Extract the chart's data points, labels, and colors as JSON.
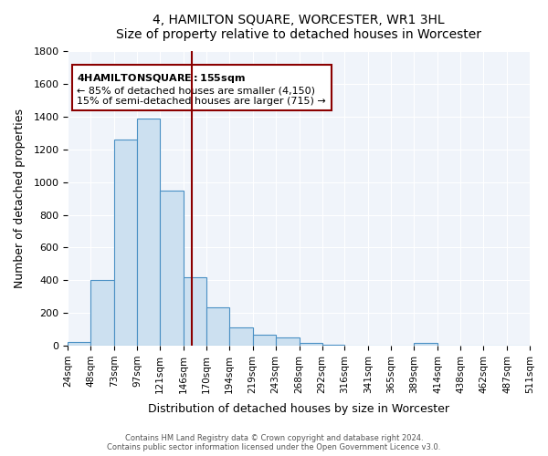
{
  "title": "4, HAMILTON SQUARE, WORCESTER, WR1 3HL",
  "subtitle": "Size of property relative to detached houses in Worcester",
  "xlabel": "Distribution of detached houses by size in Worcester",
  "ylabel": "Number of detached properties",
  "bar_edges": [
    24,
    48,
    73,
    97,
    121,
    146,
    170,
    194,
    219,
    243,
    268,
    292,
    316,
    341,
    365,
    389,
    414,
    438,
    462,
    487,
    511
  ],
  "bar_heights": [
    25,
    400,
    1260,
    1390,
    950,
    420,
    235,
    110,
    65,
    50,
    15,
    5,
    0,
    0,
    0,
    15,
    0,
    0,
    0,
    0
  ],
  "bar_color": "#cce0f0",
  "bar_edge_color": "#4a90c4",
  "vline_x": 155,
  "vline_color": "#8b0000",
  "ylim": [
    0,
    1800
  ],
  "yticks": [
    0,
    200,
    400,
    600,
    800,
    1000,
    1200,
    1400,
    1600,
    1800
  ],
  "tick_labels": [
    "24sqm",
    "48sqm",
    "73sqm",
    "97sqm",
    "121sqm",
    "146sqm",
    "170sqm",
    "194sqm",
    "219sqm",
    "243sqm",
    "268sqm",
    "292sqm",
    "316sqm",
    "341sqm",
    "365sqm",
    "389sqm",
    "414sqm",
    "438sqm",
    "462sqm",
    "487sqm",
    "511sqm"
  ],
  "annotation_title": "4 HAMILTON SQUARE: 155sqm",
  "annotation_line1": "← 85% of detached houses are smaller (4,150)",
  "annotation_line2": "15% of semi-detached houses are larger (715) →",
  "annotation_box_color": "#ffffff",
  "annotation_box_edge": "#8b0000",
  "footer1": "Contains HM Land Registry data © Crown copyright and database right 2024.",
  "footer2": "Contains public sector information licensed under the Open Government Licence v3.0.",
  "background_color": "#f0f4fa",
  "grid_color": "#ffffff",
  "fig_bg_color": "#ffffff"
}
